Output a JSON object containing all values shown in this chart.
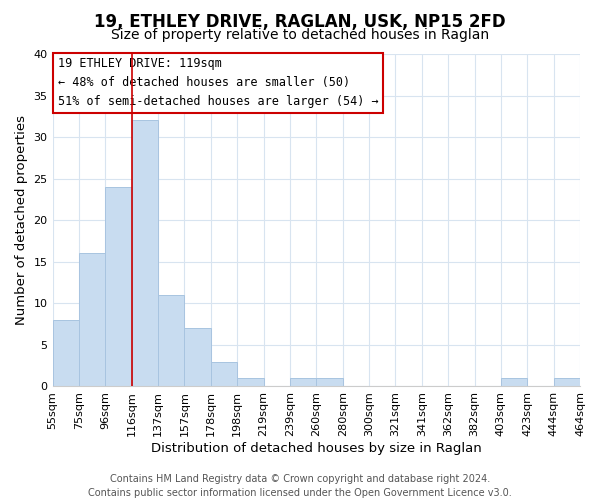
{
  "title": "19, ETHLEY DRIVE, RAGLAN, USK, NP15 2FD",
  "subtitle": "Size of property relative to detached houses in Raglan",
  "xlabel": "Distribution of detached houses by size in Raglan",
  "ylabel": "Number of detached properties",
  "bar_values": [
    8,
    16,
    24,
    32,
    11,
    7,
    3,
    1,
    0,
    1,
    1,
    0,
    0,
    0,
    0,
    0,
    0,
    1,
    0,
    1
  ],
  "bar_color": "#c8dcf0",
  "bar_edge_color": "#a8c4e0",
  "x_labels": [
    "55sqm",
    "75sqm",
    "96sqm",
    "116sqm",
    "137sqm",
    "157sqm",
    "178sqm",
    "198sqm",
    "219sqm",
    "239sqm",
    "260sqm",
    "280sqm",
    "300sqm",
    "321sqm",
    "341sqm",
    "362sqm",
    "382sqm",
    "403sqm",
    "423sqm",
    "444sqm",
    "464sqm"
  ],
  "ylim": [
    0,
    40
  ],
  "yticks": [
    0,
    5,
    10,
    15,
    20,
    25,
    30,
    35,
    40
  ],
  "property_line_x": 3,
  "annotation_title": "19 ETHLEY DRIVE: 119sqm",
  "annotation_line1": "← 48% of detached houses are smaller (50)",
  "annotation_line2": "51% of semi-detached houses are larger (54) →",
  "annotation_box_color": "#ffffff",
  "annotation_box_edge": "#cc0000",
  "footer_line1": "Contains HM Land Registry data © Crown copyright and database right 2024.",
  "footer_line2": "Contains public sector information licensed under the Open Government Licence v3.0.",
  "background_color": "#ffffff",
  "grid_color": "#d8e4f0",
  "title_fontsize": 12,
  "subtitle_fontsize": 10,
  "axis_label_fontsize": 9.5,
  "tick_fontsize": 8,
  "footer_fontsize": 7,
  "annotation_fontsize": 8.5
}
